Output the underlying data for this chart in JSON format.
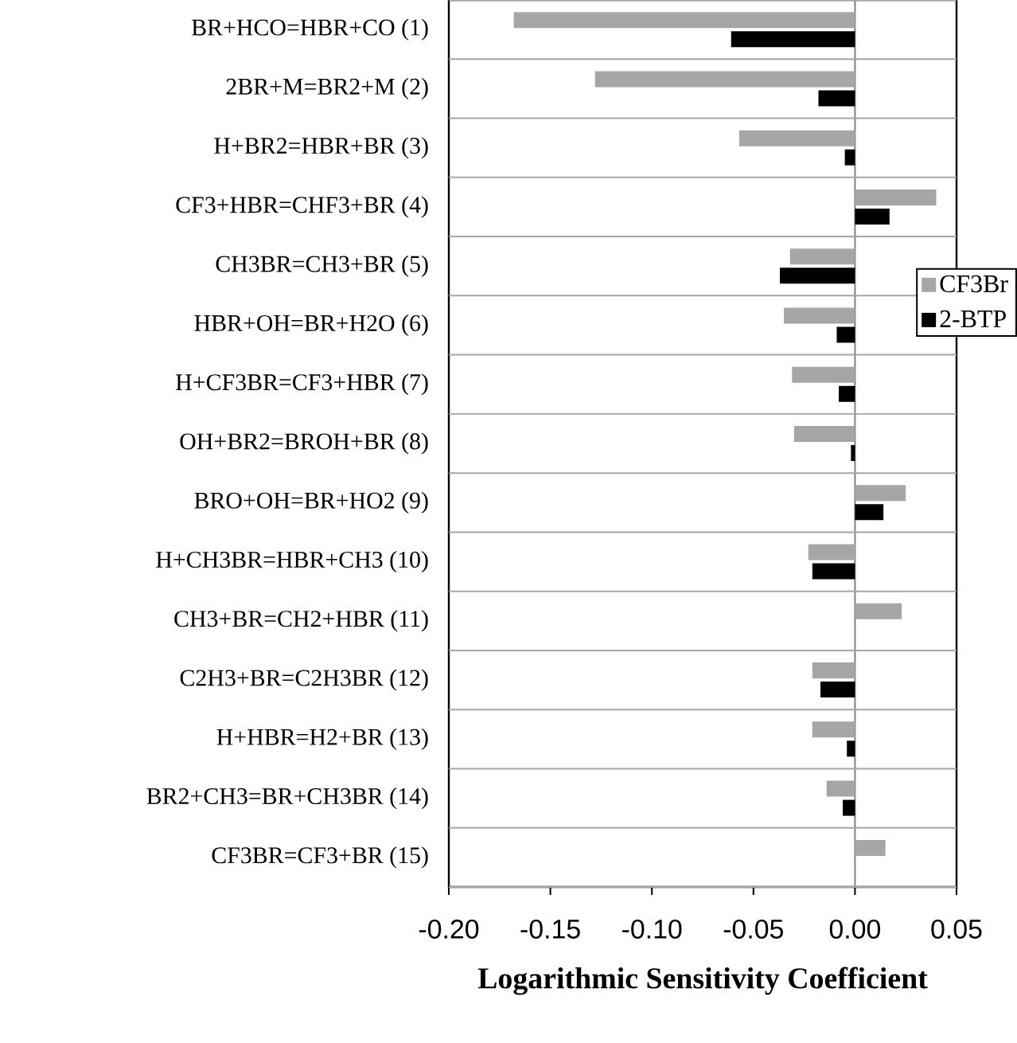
{
  "chart_data": {
    "type": "bar",
    "orientation": "horizontal",
    "xlabel": "**Logarithmic Sensitivity Coefficient**",
    "categories": [
      "BR+HCO=HBR+CO (1)",
      "2BR+M=BR2+M (2)",
      "H+BR2=HBR+BR (3)",
      "CF3+HBR=CHF3+BR (4)",
      "CH3BR=CH3+BR (5)",
      "HBR+OH=BR+H2O (6)",
      "H+CF3BR=CF3+HBR (7)",
      "OH+BR2=BROH+BR (8)",
      "BRO+OH=BR+HO2 (9)",
      "H+CH3BR=HBR+CH3 (10)",
      "CH3+BR=CH2+HBR (11)",
      "C2H3+BR=C2H3BR (12)",
      "H+HBR=H2+BR (13)",
      "BR2+CH3=BR+CH3BR (14)",
      "CF3BR=CF3+BR (15)"
    ],
    "series": [
      {
        "name": "CF3Br",
        "color": "#a6a6a6",
        "values": [
          -0.168,
          -0.128,
          -0.057,
          0.04,
          -0.032,
          -0.035,
          -0.031,
          -0.03,
          0.025,
          -0.023,
          0.023,
          -0.021,
          -0.021,
          -0.014,
          0.015
        ]
      },
      {
        "name": "2-BTP",
        "color": "#000000",
        "values": [
          -0.061,
          -0.018,
          -0.005,
          0.017,
          -0.037,
          -0.009,
          -0.008,
          -0.002,
          0.014,
          -0.021,
          null,
          -0.017,
          -0.004,
          -0.006,
          null
        ]
      }
    ],
    "xlim": [
      -0.2,
      0.05
    ],
    "xticks": [
      {
        "value": -0.2,
        "label": "-0.20"
      },
      {
        "value": -0.15,
        "label": "-0.15"
      },
      {
        "value": -0.1,
        "label": "-0.10"
      },
      {
        "value": -0.05,
        "label": "-0.05"
      },
      {
        "value": 0,
        "label": "0.00"
      },
      {
        "value": 0.05,
        "label": "0.05"
      }
    ],
    "grid": "y",
    "legend": "right"
  }
}
